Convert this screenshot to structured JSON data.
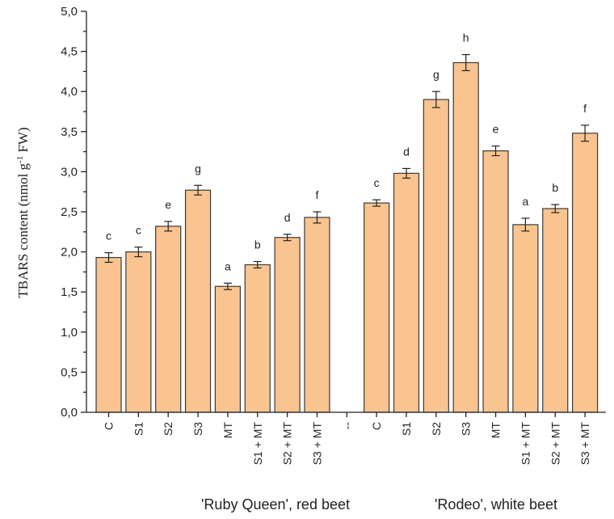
{
  "chart_data": {
    "type": "bar",
    "ylabel_main": "TBARS content (nmol g",
    "ylabel_sup": "-1",
    "ylabel_end": " FW)",
    "ylim": [
      0,
      5
    ],
    "yticks": [
      "0,0",
      "0,5",
      "1,0",
      "1,5",
      "2,0",
      "2,5",
      "3,0",
      "3,5",
      "4,0",
      "4,5",
      "5,0"
    ],
    "grid": false,
    "bar_color": "#f9c48f",
    "categories": [
      "C",
      "S1",
      "S2",
      "S3",
      "MT",
      "S1 + MT",
      "S2 + MT",
      "S3 + MT",
      "--",
      "C",
      "S1",
      "S2",
      "S3",
      "MT",
      "S1 + MT",
      "S2 + MT",
      "S3 + MT"
    ],
    "values": [
      1.93,
      2.0,
      2.32,
      2.77,
      1.57,
      1.84,
      2.18,
      2.43,
      null,
      2.61,
      2.98,
      3.9,
      4.36,
      3.26,
      2.34,
      2.54,
      3.48
    ],
    "errors": [
      0.06,
      0.06,
      0.06,
      0.06,
      0.04,
      0.04,
      0.04,
      0.07,
      null,
      0.04,
      0.06,
      0.1,
      0.1,
      0.06,
      0.08,
      0.05,
      0.1
    ],
    "letters": [
      "c",
      "c",
      "e",
      "g",
      "a",
      "b",
      "d",
      "f",
      "",
      "c",
      "d",
      "g",
      "h",
      "e",
      "a",
      "b",
      "f"
    ],
    "groups": [
      {
        "label": "'Ruby Queen', red beet"
      },
      {
        "label": "'Rodeo', white beet"
      }
    ]
  }
}
